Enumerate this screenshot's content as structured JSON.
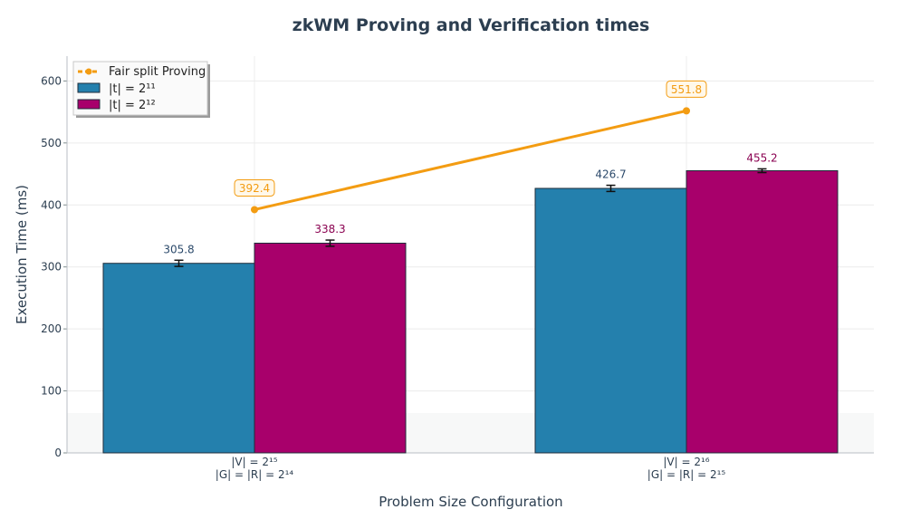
{
  "chart_data": {
    "type": "bar",
    "title": "zkWM Proving and Verification times",
    "xlabel": "Problem Size Configuration",
    "ylabel": "Execution Time (ms)",
    "ylim": [
      0,
      640
    ],
    "yticks": [
      0,
      100,
      200,
      300,
      400,
      500,
      600
    ],
    "grid": true,
    "legend_position": "top-left",
    "categories": [
      {
        "line1": "|V| = 2¹⁵",
        "line2": "|G| = |R| = 2¹⁴"
      },
      {
        "line1": "|V| = 2¹⁶",
        "line2": "|G| = |R| = 2¹⁵"
      }
    ],
    "series": [
      {
        "name": "|t| = 2¹¹",
        "type": "bar",
        "color": "#2480ad",
        "values": [
          305.8,
          426.7
        ],
        "labels": [
          "305.8",
          "426.7"
        ],
        "errors": [
          5,
          5
        ]
      },
      {
        "name": "|t| = 2¹²",
        "type": "bar",
        "color": "#a8006b",
        "values": [
          338.3,
          455.2
        ],
        "labels": [
          "338.3",
          "455.2"
        ],
        "errors": [
          5,
          3
        ]
      },
      {
        "name": "Fair split Proving",
        "type": "line",
        "color": "#f39c12",
        "values": [
          392.4,
          551.8
        ],
        "labels": [
          "392.4",
          "551.8"
        ]
      }
    ],
    "label_colors": [
      "#2c4a6b",
      "#8a0050",
      "#f39c12"
    ]
  }
}
